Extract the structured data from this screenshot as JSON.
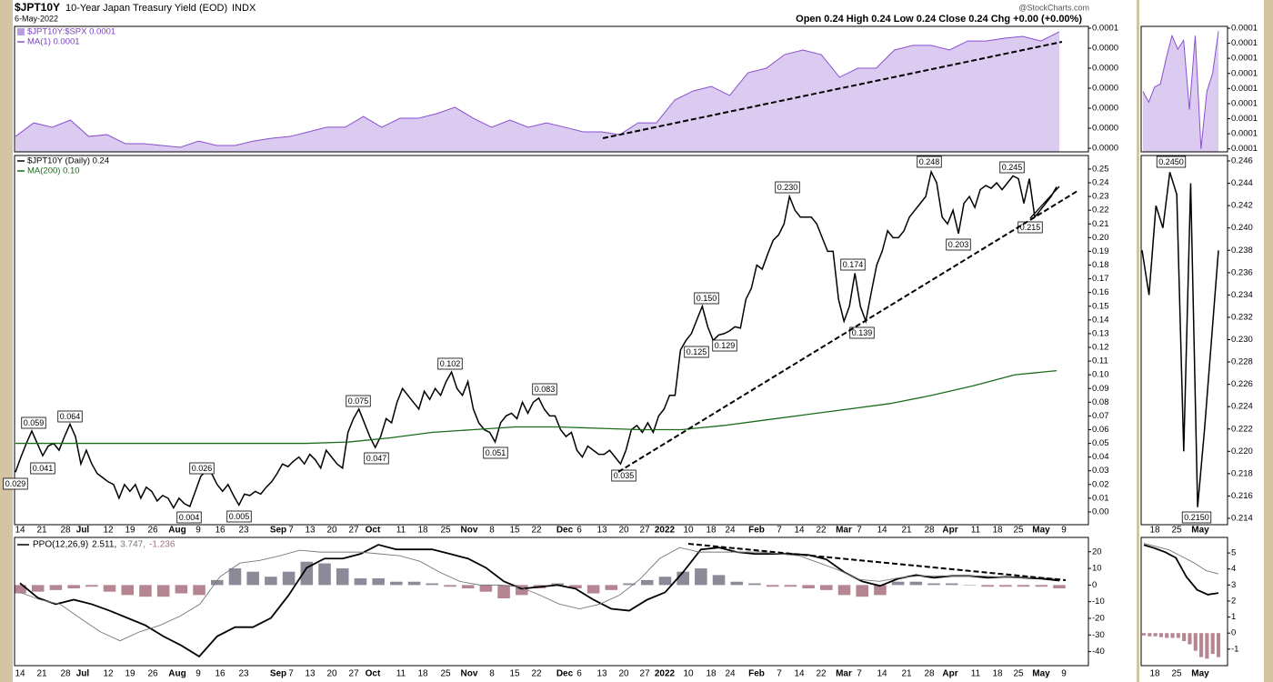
{
  "header": {
    "symbol": "$JPT10Y",
    "name": "10-Year Japan Treasury Yield (EOD)",
    "exchange": "INDX",
    "date": "6-May-2022",
    "source": "@StockCharts.com",
    "quote": "Open 0.24 High 0.24 Low 0.24 Close 0.24 Chg +0.00 (+0.00%)"
  },
  "chart_data": [
    {
      "type": "area",
      "legend": [
        {
          "text": "$JPT10Y:$SPX 0.0001",
          "color": "#b89ce0"
        },
        {
          "text": "MA(1) 0.0001",
          "color": "#8a4fd0"
        }
      ],
      "ylim": [
        -1.8e-06,
        6.09e-05
      ],
      "yticks": [
        {
          "value": 6e-05,
          "label": "0.0001"
        },
        {
          "value": 5e-05,
          "label": "0.0000"
        },
        {
          "value": 4e-05,
          "label": "0.0000"
        },
        {
          "value": 3e-05,
          "label": "0.0000"
        },
        {
          "value": 2e-05,
          "label": "0.0000"
        },
        {
          "value": 1e-05,
          "label": "0.0000"
        },
        {
          "value": 0,
          "label": "0.0000"
        }
      ],
      "series": [
        {
          "type": "area",
          "color": "#8a4fd0",
          "fill": "#dccbf0",
          "values": [
            5.9e-06,
            1.27e-05,
            1.05e-05,
            1.41e-05,
            5.9e-06,
            6.8e-06,
            2.3e-06,
            2.3e-06,
            1.4e-06,
            5e-07,
            3.6e-06,
            1.4e-06,
            1.4e-06,
            3.6e-06,
            5e-06,
            5.9e-06,
            8.2e-06,
            1.05e-05,
            1.05e-05,
            1.59e-05,
            1.05e-05,
            1.5e-05,
            1.5e-05,
            1.73e-05,
            2.05e-05,
            1.5e-05,
            1.05e-05,
            1.41e-05,
            1.05e-05,
            1.27e-05,
            1.05e-05,
            8.2e-06,
            8.2e-06,
            6.8e-06,
            1.27e-05,
            1.27e-05,
            2.41e-05,
            2.86e-05,
            3.09e-05,
            2.64e-05,
            3.77e-05,
            4e-05,
            4.68e-05,
            4.91e-05,
            4.68e-05,
            3.55e-05,
            4e-05,
            4e-05,
            4.91e-05,
            5.14e-05,
            5.14e-05,
            4.91e-05,
            5.36e-05,
            5.36e-05,
            5.5e-05,
            5.59e-05,
            5.36e-05,
            5.82e-05
          ]
        }
      ]
    },
    {
      "type": "line",
      "legend": [
        {
          "text": "$JPT10Y (Daily) 0.24",
          "color": "#000000"
        },
        {
          "text": "MA(200) 0.10",
          "color": "#1a6b1a"
        }
      ],
      "ylim": [
        -0.0093,
        0.2599
      ],
      "yticks": [
        {
          "value": 0.25,
          "label": "0.25"
        },
        {
          "value": 0.24,
          "label": "0.24"
        },
        {
          "value": 0.23,
          "label": "0.23"
        },
        {
          "value": 0.22,
          "label": "0.22"
        },
        {
          "value": 0.21,
          "label": "0.21"
        },
        {
          "value": 0.2,
          "label": "0.20"
        },
        {
          "value": 0.19,
          "label": "0.19"
        },
        {
          "value": 0.18,
          "label": "0.18"
        },
        {
          "value": 0.17,
          "label": "0.17"
        },
        {
          "value": 0.16,
          "label": "0.16"
        },
        {
          "value": 0.15,
          "label": "0.15"
        },
        {
          "value": 0.14,
          "label": "0.14"
        },
        {
          "value": 0.13,
          "label": "0.13"
        },
        {
          "value": 0.12,
          "label": "0.12"
        },
        {
          "value": 0.11,
          "label": "0.11"
        },
        {
          "value": 0.1,
          "label": "0.10"
        },
        {
          "value": 0.09,
          "label": "0.09"
        },
        {
          "value": 0.08,
          "label": "0.08"
        },
        {
          "value": 0.07,
          "label": "0.07"
        },
        {
          "value": 0.06,
          "label": "0.06"
        },
        {
          "value": 0.05,
          "label": "0.05"
        },
        {
          "value": 0.04,
          "label": "0.04"
        },
        {
          "value": 0.03,
          "label": "0.03"
        },
        {
          "value": 0.02,
          "label": "0.02"
        },
        {
          "value": 0.01,
          "label": "0.01"
        },
        {
          "value": 0,
          "label": "0.00"
        }
      ],
      "x_labels": [
        "14",
        "21",
        "28",
        "Jul",
        "12",
        "19",
        "26",
        "Aug",
        "9",
        "16",
        "23",
        "Sep",
        "7",
        "13",
        "20",
        "27",
        "Oct",
        "11",
        "18",
        "25",
        "Nov",
        "8",
        "15",
        "22",
        "Dec",
        "6",
        "13",
        "20",
        "27",
        "2022",
        "10",
        "18",
        "24",
        "Feb",
        "7",
        "14",
        "22",
        "Mar",
        "7",
        "14",
        "21",
        "28",
        "Apr",
        "11",
        "18",
        "25",
        "May",
        "9"
      ],
      "series": [
        {
          "type": "line",
          "color": "#000000",
          "width": 1.5,
          "values": [
            0.029,
            0.04,
            0.05,
            0.059,
            0.05,
            0.041,
            0.048,
            0.05,
            0.045,
            0.055,
            0.064,
            0.055,
            0.035,
            0.045,
            0.035,
            0.028,
            0.025,
            0.022,
            0.02,
            0.01,
            0.02,
            0.015,
            0.02,
            0.01,
            0.018,
            0.015,
            0.008,
            0.012,
            0.01,
            0.003,
            0.01,
            0.006,
            0.004,
            0.015,
            0.026,
            0.03,
            0.028,
            0.02,
            0.015,
            0.02,
            0.012,
            0.005,
            0.013,
            0.012,
            0.015,
            0.013,
            0.018,
            0.022,
            0.028,
            0.035,
            0.033,
            0.037,
            0.04,
            0.035,
            0.042,
            0.038,
            0.032,
            0.045,
            0.04,
            0.035,
            0.032,
            0.058,
            0.068,
            0.075,
            0.065,
            0.055,
            0.047,
            0.055,
            0.068,
            0.065,
            0.08,
            0.09,
            0.085,
            0.08,
            0.075,
            0.088,
            0.082,
            0.09,
            0.085,
            0.095,
            0.102,
            0.09,
            0.085,
            0.095,
            0.075,
            0.065,
            0.06,
            0.058,
            0.051,
            0.065,
            0.07,
            0.072,
            0.068,
            0.08,
            0.072,
            0.08,
            0.083,
            0.075,
            0.07,
            0.07,
            0.06,
            0.055,
            0.058,
            0.045,
            0.04,
            0.048,
            0.045,
            0.042,
            0.042,
            0.045,
            0.04,
            0.035,
            0.045,
            0.06,
            0.063,
            0.058,
            0.065,
            0.058,
            0.07,
            0.075,
            0.085,
            0.085,
            0.118,
            0.125,
            0.13,
            0.14,
            0.15,
            0.135,
            0.125,
            0.129,
            0.13,
            0.132,
            0.135,
            0.134,
            0.155,
            0.163,
            0.18,
            0.177,
            0.188,
            0.198,
            0.202,
            0.21,
            0.23,
            0.22,
            0.215,
            0.215,
            0.215,
            0.21,
            0.2,
            0.19,
            0.19,
            0.155,
            0.139,
            0.15,
            0.174,
            0.15,
            0.139,
            0.16,
            0.18,
            0.19,
            0.205,
            0.2,
            0.2,
            0.205,
            0.215,
            0.22,
            0.225,
            0.23,
            0.248,
            0.24,
            0.215,
            0.21,
            0.22,
            0.203,
            0.225,
            0.23,
            0.222,
            0.235,
            0.238,
            0.236,
            0.24,
            0.235,
            0.24,
            0.245,
            0.243,
            0.225,
            0.243,
            0.215,
            0.22,
            0.225,
            0.23,
            0.237
          ]
        },
        {
          "type": "line",
          "color": "#1a6b1a",
          "width": 1.3,
          "values": [
            0.05,
            0.05,
            0.05,
            0.05,
            0.05,
            0.05,
            0.05,
            0.05,
            0.051,
            0.054,
            0.058,
            0.06,
            0.062,
            0.062,
            0.061,
            0.06,
            0.06,
            0.063,
            0.067,
            0.071,
            0.075,
            0.079,
            0.085,
            0.092,
            0.1,
            0.103
          ]
        }
      ],
      "annotations": [
        0.029,
        0.059,
        0.041,
        0.064,
        0.026,
        0.004,
        0.005,
        0.075,
        0.047,
        0.102,
        0.051,
        0.083,
        0.035,
        {
          "value": 0.15,
          "label": "0.150"
        },
        0.125,
        0.129,
        {
          "value": 0.23,
          "label": "0.230"
        },
        0.174,
        0.139,
        0.248,
        0.203,
        0.245,
        0.215
      ]
    },
    {
      "type": "line",
      "legend": [
        {
          "text": "PPO(12,26,9)",
          "color": "#000000"
        },
        {
          "text": "2.511,",
          "color": "#000000"
        },
        {
          "text": "3.747,",
          "color": "#777777"
        },
        {
          "text": "-1.236",
          "color": "#a07080"
        }
      ],
      "ylim": [
        -48.4,
        28.6
      ],
      "yticks": [
        20,
        10,
        0,
        -10,
        -20,
        -30,
        -40
      ],
      "x_labels": [
        "14",
        "21",
        "28",
        "Jul",
        "12",
        "19",
        "26",
        "Aug",
        "9",
        "16",
        "23",
        "Sep",
        "7",
        "13",
        "20",
        "27",
        "Oct",
        "11",
        "18",
        "25",
        "Nov",
        "8",
        "15",
        "22",
        "Dec",
        "6",
        "13",
        "20",
        "27",
        "2022",
        "10",
        "18",
        "24",
        "Feb",
        "7",
        "14",
        "22",
        "Mar",
        "7",
        "14",
        "21",
        "28",
        "Apr",
        "11",
        "18",
        "25",
        "May",
        "9"
      ],
      "series": [
        {
          "type": "bar",
          "color": "#8a8a98",
          "color_negative": "#b58592",
          "values": [
            -5,
            -4,
            -3,
            -2,
            -1,
            -4,
            -6,
            -7,
            -7,
            -5,
            -6,
            3,
            10,
            8,
            5,
            8,
            14,
            13,
            10,
            4,
            4,
            2,
            2,
            1,
            -1,
            -2,
            -4,
            -8,
            -6,
            -2,
            1,
            -2,
            -5,
            -3,
            1,
            3,
            5,
            8,
            10,
            6,
            2,
            1,
            -1,
            -1,
            -2,
            -3,
            -6,
            -7,
            -6,
            2,
            2,
            1,
            1,
            0,
            -1,
            -1,
            -1,
            -1,
            -2
          ]
        },
        {
          "type": "line",
          "color": "#000000",
          "width": 1.8,
          "values": [
            1.1,
            -7.7,
            -11.5,
            -8.8,
            -11.5,
            -15.4,
            -19.8,
            -24.2,
            -30.8,
            -36.3,
            -42.9,
            -30.8,
            -25.3,
            -25.3,
            -19.8,
            -6,
            10.4,
            15.9,
            15.9,
            18.7,
            24.2,
            21.4,
            21.4,
            21.4,
            18.7,
            15.9,
            10.4,
            2.2,
            -2.2,
            -1.1,
            0,
            -2.2,
            -8.8,
            -14.3,
            -15.4,
            -8.8,
            -4.4,
            7.7,
            21.4,
            22.5,
            19.8,
            18.7,
            18.7,
            18.7,
            18.1,
            15.4,
            7.7,
            2.2,
            -0.5,
            3.8,
            6,
            4.4,
            5.5,
            5.5,
            4.4,
            4.9,
            4.4,
            3.8,
            2.7
          ]
        },
        {
          "type": "line",
          "color": "#777777",
          "width": 0.9,
          "values": [
            -4.4,
            -8.8,
            -11.5,
            -19.8,
            -28,
            -33.5,
            -28,
            -24.2,
            -18.7,
            -11.5,
            4.9,
            13.2,
            14.8,
            17.6,
            20.9,
            19.8,
            19.8,
            19.8,
            18.7,
            17.6,
            14.3,
            7.7,
            2.2,
            0,
            0,
            -1.1,
            -6,
            -11.5,
            -14.3,
            -11.5,
            -6,
            3.3,
            15.9,
            22.5,
            19.8,
            19.8,
            19.8,
            19.8,
            18.7,
            17.6,
            13.2,
            8.8,
            3.3,
            2.2,
            4.4,
            5.5,
            5.5,
            5.5,
            5.5,
            4.9,
            4.4,
            4.4,
            3.8
          ]
        }
      ]
    },
    {
      "type": "area",
      "ylim": [
        5.18e-05,
        6.012e-05
      ],
      "yticks": [
        {
          "value": 6e-05,
          "label": "0.0001"
        },
        {
          "value": 5.9e-05,
          "label": "0.0001"
        },
        {
          "value": 5.8e-05,
          "label": "0.0001"
        },
        {
          "value": 5.7e-05,
          "label": "0.0001"
        },
        {
          "value": 5.6e-05,
          "label": "0.0001"
        },
        {
          "value": 5.5e-05,
          "label": "0.0001"
        },
        {
          "value": 5.4e-05,
          "label": "0.0001"
        },
        {
          "value": 5.3e-05,
          "label": "0.0001"
        },
        {
          "value": 5.2e-05,
          "label": "0.0001"
        }
      ],
      "series": [
        {
          "type": "area",
          "color": "#8a4fd0",
          "fill": "#dccbf0",
          "values": [
            5.58e-05,
            5.51e-05,
            5.61e-05,
            5.63e-05,
            5.8e-05,
            5.95e-05,
            5.86e-05,
            5.92e-05,
            5.46e-05,
            5.95e-05,
            5.2e-05,
            5.58e-05,
            5.7e-05,
            5.98e-05
          ]
        }
      ]
    },
    {
      "type": "line",
      "ylim": [
        0.21343,
        0.24649
      ],
      "yticks": [
        0.246,
        0.244,
        0.242,
        {
          "value": 0.24,
          "label": "0.240"
        },
        0.238,
        0.236,
        0.234,
        0.232,
        {
          "value": 0.23,
          "label": "0.230"
        },
        0.228,
        0.226,
        0.224,
        0.222,
        {
          "value": 0.22,
          "label": "0.220"
        },
        0.218,
        0.216,
        0.214
      ],
      "x_labels": [
        "18",
        "25",
        "May"
      ],
      "series": [
        {
          "type": "line",
          "color": "#000000",
          "width": 1.5,
          "values": [
            0.238,
            0.234,
            0.242,
            0.24,
            0.245,
            0.243,
            0.22,
            0.244,
            0.215,
            0.222,
            0.23,
            0.238
          ]
        }
      ],
      "annotations": [
        {
          "value": 0.245,
          "label": "0.2450"
        },
        {
          "value": 0.215,
          "label": "0.2150"
        }
      ]
    },
    {
      "type": "line",
      "ylim": [
        -2.03,
        5.97
      ],
      "yticks": [
        5,
        4,
        3,
        2,
        1,
        0,
        -1
      ],
      "x_labels": [
        "18",
        "25",
        "May"
      ],
      "series": [
        {
          "type": "bar",
          "color": "#8a8a98",
          "color_negative": "#b58592",
          "values": [
            -0.15,
            -0.2,
            -0.2,
            -0.25,
            -0.3,
            -0.3,
            -0.3,
            -0.5,
            -0.7,
            -1.1,
            -1.5,
            -1.6,
            -1.3,
            -1.5
          ]
        },
        {
          "type": "line",
          "color": "#000000",
          "width": 1.8,
          "values": [
            5.5,
            5.3,
            5.05,
            4.7,
            3.5,
            2.7,
            2.4,
            2.5
          ]
        },
        {
          "type": "line",
          "color": "#777777",
          "width": 0.9,
          "values": [
            5.6,
            5.4,
            5.2,
            4.8,
            4.4,
            3.9,
            3.7
          ]
        }
      ]
    }
  ]
}
